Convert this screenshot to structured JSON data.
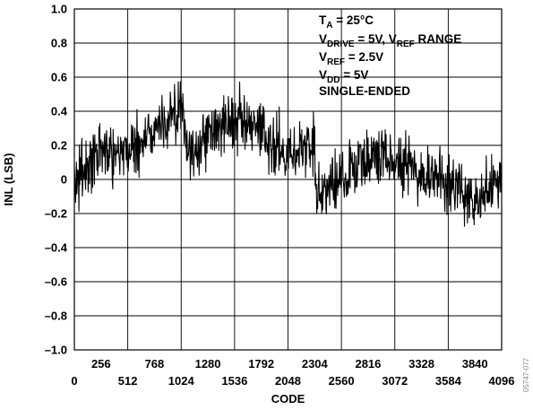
{
  "chart_data": {
    "type": "line",
    "title": "",
    "xlabel": "CODE",
    "ylabel": "INL (LSB)",
    "xlim": [
      0,
      4096
    ],
    "ylim": [
      -1.0,
      1.0
    ],
    "grid": true,
    "x_ticks": [
      0,
      256,
      512,
      768,
      1024,
      1280,
      1536,
      1792,
      2048,
      2304,
      2560,
      2816,
      3072,
      3328,
      3584,
      3840,
      4096
    ],
    "x_tick_labels": [
      "0",
      "256",
      "512",
      "768",
      "1024",
      "1280",
      "1536",
      "1792",
      "2048",
      "2304",
      "2560",
      "2816",
      "3072",
      "3328",
      "3584",
      "3840",
      "4096"
    ],
    "y_ticks": [
      -1.0,
      -0.8,
      -0.6,
      -0.4,
      -0.2,
      0,
      0.2,
      0.4,
      0.6,
      0.8,
      1.0
    ],
    "y_tick_labels": [
      "–1.0",
      "–0.8",
      "–0.6",
      "–0.4",
      "–0.2",
      "0",
      "0.2",
      "0.4",
      "0.6",
      "0.8",
      "1.0"
    ],
    "annotation_lines": [
      {
        "main": "T",
        "sub": "A",
        "rest": " = 25°C"
      },
      {
        "main": "V",
        "sub": "DRIVE",
        "rest": " = 5V, V",
        "sub2": "REF",
        "rest2": " RANGE"
      },
      {
        "main": "V",
        "sub": "REF",
        "rest": " = 2.5V"
      },
      {
        "main": "V",
        "sub": "DD",
        "rest": " = 5V"
      },
      {
        "main": "SINGLE-ENDED"
      }
    ],
    "figure_id": "05747-077",
    "series": [
      {
        "color": "#000000",
        "x": [
          0,
          128,
          256,
          384,
          512,
          640,
          768,
          896,
          1024,
          1088,
          1152,
          1280,
          1408,
          1536,
          1664,
          1792,
          1920,
          2048,
          2176,
          2304,
          2316,
          2432,
          2560,
          2688,
          2816,
          2944,
          3072,
          3200,
          3328,
          3456,
          3584,
          3712,
          3840,
          3968,
          4096
        ],
        "y": [
          -0.02,
          0.08,
          0.16,
          0.18,
          0.17,
          0.22,
          0.3,
          0.36,
          0.4,
          0.16,
          0.17,
          0.26,
          0.33,
          0.35,
          0.3,
          0.26,
          0.21,
          0.17,
          0.15,
          0.22,
          -0.1,
          -0.05,
          0.02,
          0.08,
          0.12,
          0.13,
          0.12,
          0.1,
          0.05,
          0.0,
          -0.03,
          -0.07,
          -0.09,
          -0.06,
          0.0
        ],
        "noise_amplitude": 0.19
      }
    ]
  }
}
